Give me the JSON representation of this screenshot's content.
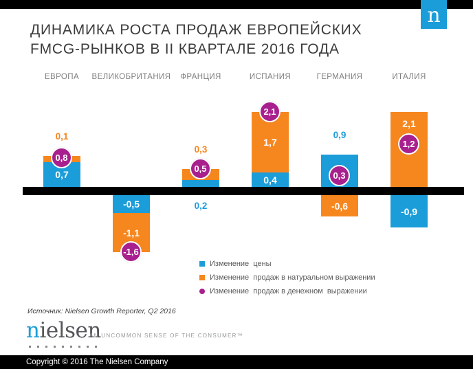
{
  "top": {
    "brand_letter": "n"
  },
  "title": {
    "line1": "ДИНАМИКА РОСТА ПРОДАЖ ЕВРОПЕЙСКИХ",
    "line2": "FMCG-РЫНКОВ В II КВАРТАЛЕ 2016 ГОДА"
  },
  "colors": {
    "blue": "#1B9DD9",
    "orange": "#F6871F",
    "purple": "#A8208E",
    "axis": "#000000"
  },
  "chart_data": {
    "type": "bar",
    "stacked": true,
    "title": "ДИНАМИКА РОСТА ПРОДАЖ ЕВРОПЕЙСКИХ FMCG-РЫНКОВ В II КВАРТАЛЕ 2016 ГОДА",
    "xlabel": "",
    "ylabel": "",
    "ylim": [
      -1.6,
      2.1
    ],
    "grid": false,
    "legend_position": "bottom-center",
    "baseline": 0,
    "categories": [
      "ЕВРОПА",
      "ВЕЛИКОБРИТАНИЯ",
      "ФРАНЦИЯ",
      "ИСПАНИЯ",
      "ГЕРМАНИЯ",
      "ИТАЛИЯ"
    ],
    "series": [
      {
        "name": "Изменение  цены",
        "color_key": "blue",
        "values": [
          0.7,
          -0.5,
          0.2,
          0.4,
          0.9,
          -0.9
        ]
      },
      {
        "name": "Изменение  продаж в натуральном выражении",
        "color_key": "orange",
        "values": [
          0.1,
          -1.1,
          0.3,
          1.7,
          -0.6,
          2.1
        ]
      },
      {
        "name": "Изменение  продаж в денежном  выражении",
        "color_key": "purple",
        "marker": "circle",
        "values": [
          0.8,
          -1.6,
          0.5,
          2.1,
          0.3,
          1.2
        ]
      }
    ],
    "countries": [
      {
        "name": "ЕВРОПА",
        "price": 0.7,
        "volume": 0.1,
        "value": 0.8,
        "labels": {
          "price": {
            "text": "0,7",
            "pos": "inside"
          },
          "volume": {
            "text": "0,1",
            "pos": "above"
          },
          "value": "0,8"
        }
      },
      {
        "name": "ВЕЛИКОБРИТАНИЯ",
        "price": -0.5,
        "volume": -1.1,
        "value": -1.6,
        "labels": {
          "price": {
            "text": "-0,5",
            "pos": "inside"
          },
          "volume": {
            "text": "-1,1",
            "pos": "inside"
          },
          "value": "-1,6"
        }
      },
      {
        "name": "ФРАНЦИЯ",
        "price": 0.2,
        "volume": 0.3,
        "value": 0.5,
        "labels": {
          "price": {
            "text": "0,2",
            "pos": "below"
          },
          "volume": {
            "text": "0,3",
            "pos": "above"
          },
          "value": "0,5"
        }
      },
      {
        "name": "ИСПАНИЯ",
        "price": 0.4,
        "volume": 1.7,
        "value": 2.1,
        "labels": {
          "price": {
            "text": "0,4",
            "pos": "inside"
          },
          "volume": {
            "text": "1,7",
            "pos": "inside"
          },
          "value": "2,1"
        }
      },
      {
        "name": "ГЕРМАНИЯ",
        "price": 0.9,
        "volume": -0.6,
        "value": 0.3,
        "labels": {
          "price": {
            "text": "0,9",
            "pos": "above"
          },
          "volume": {
            "text": "-0,6",
            "pos": "inside"
          },
          "value": "0,3"
        }
      },
      {
        "name": "ИТАЛИЯ",
        "price": -0.9,
        "volume": 2.1,
        "value": 1.2,
        "labels": {
          "price": {
            "text": "-0,9",
            "pos": "inside"
          },
          "volume": {
            "text": "2,1",
            "pos": "inside",
            "shift": -38
          },
          "value": "1,2"
        }
      }
    ]
  },
  "legend": [
    {
      "marker": "square",
      "color_key": "blue",
      "label": "Изменение  цены"
    },
    {
      "marker": "square",
      "color_key": "orange",
      "label": "Изменение  продаж в натуральном выражении"
    },
    {
      "marker": "circle",
      "color_key": "purple",
      "label": "Изменение  продаж в денежном  выражении"
    }
  ],
  "source": "Источник: Nielsen Growth Reporter, Q2 2016",
  "brand": {
    "wordmark_first": "n",
    "wordmark_rest": "ielsen",
    "tagline": "AN UNCOMMON SENSE OF THE CONSUMER™",
    "dots": 9
  },
  "footer": {
    "copyright": "Copyright © 2016 The Nielsen Company"
  }
}
